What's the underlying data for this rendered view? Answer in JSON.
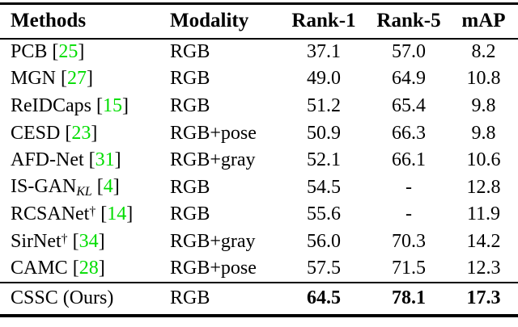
{
  "page": {
    "background": "#ffffff",
    "text_color": "#000000",
    "citation_color": "#00dd00"
  },
  "table": {
    "headers": [
      {
        "label": "Methods"
      },
      {
        "label": "Modality"
      },
      {
        "label": "Rank-1"
      },
      {
        "label": "Rank-5"
      },
      {
        "label": "mAP"
      }
    ],
    "rows": [
      {
        "method": "PCB",
        "subscript": "",
        "dagger": false,
        "cite": "25",
        "modality": "RGB",
        "rank1": "37.1",
        "rank5": "57.0",
        "map": "8.2"
      },
      {
        "method": "MGN",
        "subscript": "",
        "dagger": false,
        "cite": "27",
        "modality": "RGB",
        "rank1": "49.0",
        "rank5": "64.9",
        "map": "10.8"
      },
      {
        "method": "ReIDCaps",
        "subscript": "",
        "dagger": false,
        "cite": "15",
        "modality": "RGB",
        "rank1": "51.2",
        "rank5": "65.4",
        "map": "9.8"
      },
      {
        "method": "CESD",
        "subscript": "",
        "dagger": false,
        "cite": "23",
        "modality": "RGB+pose",
        "rank1": "50.9",
        "rank5": "66.3",
        "map": "9.8"
      },
      {
        "method": "AFD-Net",
        "subscript": "",
        "dagger": false,
        "cite": "31",
        "modality": "RGB+gray",
        "rank1": "52.1",
        "rank5": "66.1",
        "map": "10.6"
      },
      {
        "method": "IS-GAN",
        "subscript": "KL",
        "dagger": false,
        "cite": "4",
        "modality": "RGB",
        "rank1": "54.5",
        "rank5": "-",
        "map": "12.8"
      },
      {
        "method": "RCSANet",
        "subscript": "",
        "dagger": true,
        "cite": "14",
        "modality": "RGB",
        "rank1": "55.6",
        "rank5": "-",
        "map": "11.9"
      },
      {
        "method": "SirNet",
        "subscript": "",
        "dagger": true,
        "cite": "34",
        "modality": "RGB+gray",
        "rank1": "56.0",
        "rank5": "70.3",
        "map": "14.2"
      },
      {
        "method": "CAMC",
        "subscript": "",
        "dagger": false,
        "cite": "28",
        "modality": "RGB+pose",
        "rank1": "57.5",
        "rank5": "71.5",
        "map": "12.3"
      }
    ],
    "final_row": {
      "method": "CSSC (Ours)",
      "subscript": "",
      "dagger": false,
      "cite": "",
      "modality": "RGB",
      "rank1": "64.5",
      "rank5": "78.1",
      "map": "17.3"
    },
    "dagger_glyph": "†",
    "bracket_open": "[",
    "bracket_close": "]"
  }
}
